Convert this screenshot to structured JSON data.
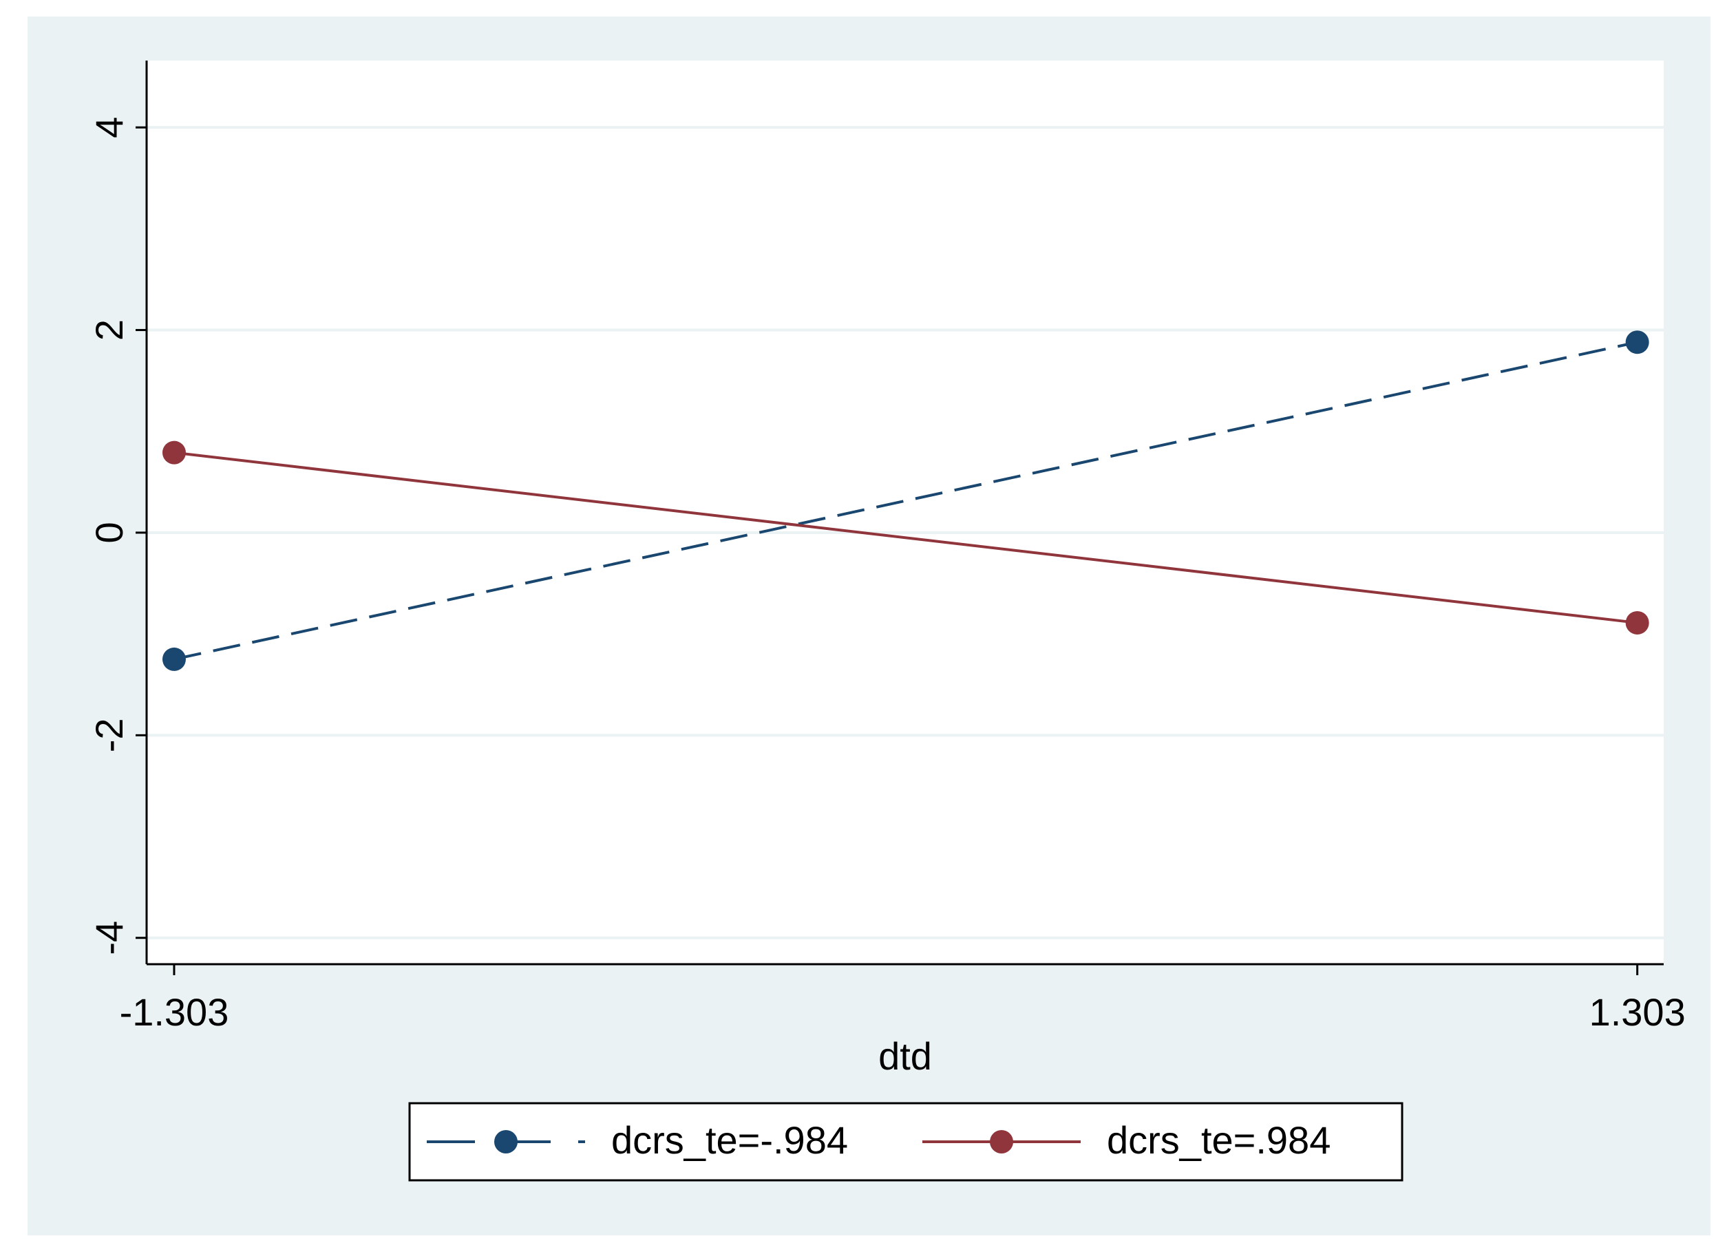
{
  "chart_data": {
    "type": "line",
    "x_label": "dtd",
    "x": [
      -1.303,
      1.303
    ],
    "xticks": [
      -1.303,
      1.303
    ],
    "xlim": [
      -1.352,
      1.35
    ],
    "ylim": [
      -4.26,
      4.66
    ],
    "yticks": [
      -4,
      -2,
      0,
      2,
      4
    ],
    "grid": true,
    "series": [
      {
        "name": "dcrs_te=-.984",
        "color": "#1a476f",
        "dash": true,
        "values": [
          -1.25,
          1.88
        ]
      },
      {
        "name": "dcrs_te=.984",
        "color": "#90353b",
        "dash": false,
        "values": [
          0.79,
          -0.89
        ]
      }
    ]
  }
}
